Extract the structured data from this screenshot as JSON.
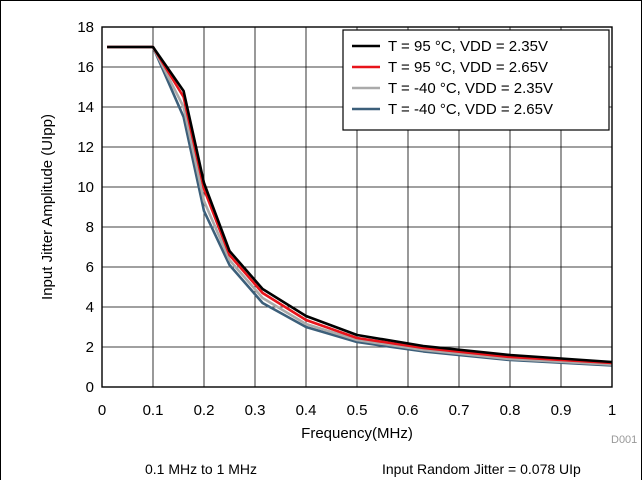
{
  "chart_data": {
    "type": "line",
    "xlabel": "Frequency(MHz)",
    "ylabel": "Input Jitter Amplitude (UIpp)",
    "xlim": [
      0,
      1
    ],
    "ylim": [
      0,
      18
    ],
    "x_ticks": [
      "0",
      "0.1",
      "0.2",
      "0.3",
      "0.4",
      "0.5",
      "0.6",
      "0.7",
      "0.8",
      "0.9",
      "1"
    ],
    "y_ticks": [
      "0",
      "2",
      "4",
      "6",
      "8",
      "10",
      "12",
      "14",
      "16",
      "18"
    ],
    "grid": true,
    "legend_position": "top-right",
    "x": [
      0.01,
      0.1,
      0.16,
      0.2,
      0.25,
      0.315,
      0.4,
      0.5,
      0.63,
      0.8,
      1.0
    ],
    "series": [
      {
        "name": "T = 95 °C, VDD = 2.35V",
        "color": "#000000",
        "values": [
          17.0,
          17.0,
          14.8,
          10.2,
          6.8,
          4.9,
          3.55,
          2.6,
          2.05,
          1.6,
          1.25
        ]
      },
      {
        "name": "T = 95 °C, VDD = 2.65V",
        "color": "#e8141b",
        "values": [
          17.0,
          17.0,
          14.5,
          9.9,
          6.6,
          4.7,
          3.35,
          2.45,
          1.95,
          1.5,
          1.2
        ]
      },
      {
        "name": "T = -40 °C, VDD = 2.35V",
        "color": "#aaaaaa",
        "values": [
          17.0,
          17.0,
          14.0,
          9.3,
          6.35,
          4.45,
          3.15,
          2.35,
          1.85,
          1.4,
          1.12
        ]
      },
      {
        "name": "T = -40 °C, VDD = 2.65V",
        "color": "#3c5f7a",
        "values": [
          17.0,
          17.0,
          13.5,
          8.8,
          6.1,
          4.2,
          3.0,
          2.25,
          1.78,
          1.35,
          1.08
        ]
      }
    ]
  },
  "doc_id": "D001",
  "footer": {
    "left": "0.1 MHz to 1 MHz",
    "right": "Input Random Jitter = 0.078 UIp"
  }
}
